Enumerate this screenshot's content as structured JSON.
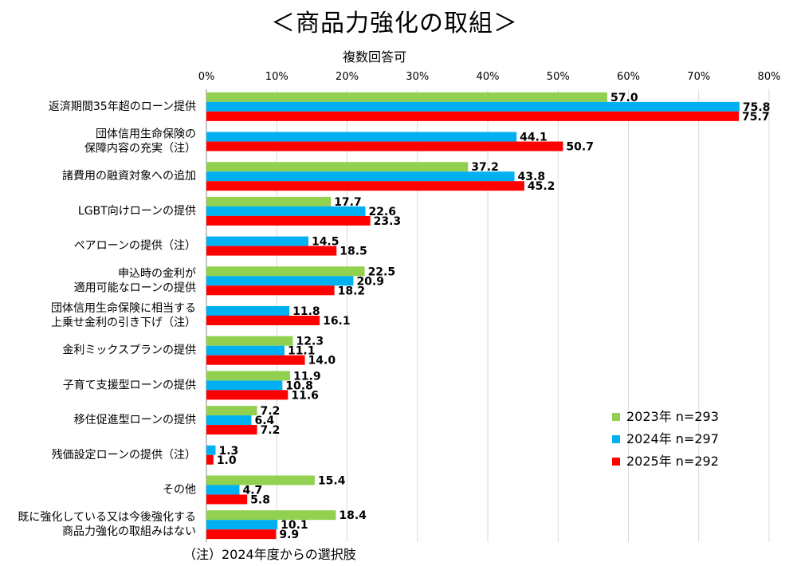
{
  "chart_data": {
    "type": "bar",
    "orientation": "horizontal",
    "title": "＜商品力強化の取組＞",
    "subtitle": "複数回答可",
    "footnote": "（注）2024年度からの選択肢",
    "xlim": [
      0,
      80
    ],
    "ticks": [
      "0%",
      "10%",
      "20%",
      "30%",
      "40%",
      "50%",
      "60%",
      "70%",
      "80%"
    ],
    "grid": true,
    "legend_position": "bottom-right",
    "categories": [
      [
        "返済期間35年超のローン提供"
      ],
      [
        "団体信用生命保険の",
        "保障内容の充実（注）"
      ],
      [
        "諸費用の融資対象への追加"
      ],
      [
        "LGBT向けローンの提供"
      ],
      [
        "ペアローンの提供（注）"
      ],
      [
        "申込時の金利が",
        "適用可能なローンの提供"
      ],
      [
        "団体信用生命保険に相当する",
        "上乗せ金利の引き下げ（注）"
      ],
      [
        "金利ミックスプランの提供"
      ],
      [
        "子育て支援型ローンの提供"
      ],
      [
        "移住促進型ローンの提供"
      ],
      [
        "残価設定ローンの提供（注）"
      ],
      [
        "その他"
      ],
      [
        "既に強化している又は今後強化する",
        "商品力強化の取組みはない"
      ]
    ],
    "series": [
      {
        "name": "2023年 n=293",
        "color": "#92d050",
        "values": [
          57.0,
          null,
          37.2,
          17.7,
          null,
          22.5,
          null,
          12.3,
          11.9,
          7.2,
          null,
          15.4,
          18.4
        ]
      },
      {
        "name": "2024年 n=297",
        "color": "#00b0f0",
        "values": [
          75.8,
          44.1,
          43.8,
          22.6,
          14.5,
          20.9,
          11.8,
          11.1,
          10.8,
          6.4,
          1.3,
          4.7,
          10.1
        ]
      },
      {
        "name": "2025年 n=292",
        "color": "#ff0000",
        "values": [
          75.7,
          50.7,
          45.2,
          23.3,
          18.5,
          18.2,
          16.1,
          14.0,
          11.6,
          7.2,
          1.0,
          5.8,
          9.9
        ]
      }
    ]
  }
}
